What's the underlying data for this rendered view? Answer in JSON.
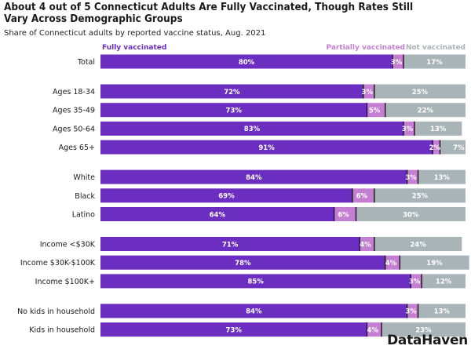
{
  "title": "About 4 out of 5 Connecticut Adults Are Fully Vaccinated, Though Rates Still Vary Across Demographic Groups",
  "subtitle": "Share of Connecticut adults by reported vaccine status, Aug. 2021",
  "logo": "DataHaven",
  "colors": {
    "fully": "#6b2ec1",
    "partially": "#c57fd2",
    "not": "#a8b4b7",
    "separator": "#1e1e1e"
  },
  "chart_data": {
    "type": "bar",
    "orientation": "horizontal",
    "stacked": true,
    "percent_stacked": true,
    "legend": "top",
    "grid": false,
    "xlim": [
      0,
      100
    ],
    "series": [
      {
        "name": "Fully vaccinated",
        "color": "#6b2ec1",
        "label_color": "#ffffff"
      },
      {
        "name": "Partially vaccinated",
        "color": "#c57fd2",
        "label_color": "#ffffff"
      },
      {
        "name": "Not vaccinated",
        "color": "#a8b4b7",
        "label_color": "#ffffff"
      }
    ],
    "groups": [
      {
        "rows": [
          {
            "label": "Total",
            "values": [
              80,
              3,
              17
            ]
          }
        ]
      },
      {
        "rows": [
          {
            "label": "Ages 18-34",
            "values": [
              72,
              3,
              25
            ]
          },
          {
            "label": "Ages 35-49",
            "values": [
              73,
              5,
              22
            ]
          },
          {
            "label": "Ages 50-64",
            "values": [
              83,
              3,
              13
            ]
          },
          {
            "label": "Ages 65+",
            "values": [
              91,
              2,
              7
            ]
          }
        ]
      },
      {
        "rows": [
          {
            "label": "White",
            "values": [
              84,
              3,
              13
            ]
          },
          {
            "label": "Black",
            "values": [
              69,
              6,
              25
            ]
          },
          {
            "label": "Latino",
            "values": [
              64,
              6,
              30
            ]
          }
        ]
      },
      {
        "rows": [
          {
            "label": "Income <$30K",
            "values": [
              71,
              4,
              24
            ]
          },
          {
            "label": "Income $30K-$100K",
            "values": [
              78,
              4,
              19
            ]
          },
          {
            "label": "Income $100K+",
            "values": [
              85,
              3,
              12
            ]
          }
        ]
      },
      {
        "rows": [
          {
            "label": "No kids in household",
            "values": [
              84,
              3,
              13
            ]
          },
          {
            "label": "Kids in household",
            "values": [
              73,
              4,
              23
            ]
          }
        ]
      }
    ]
  }
}
